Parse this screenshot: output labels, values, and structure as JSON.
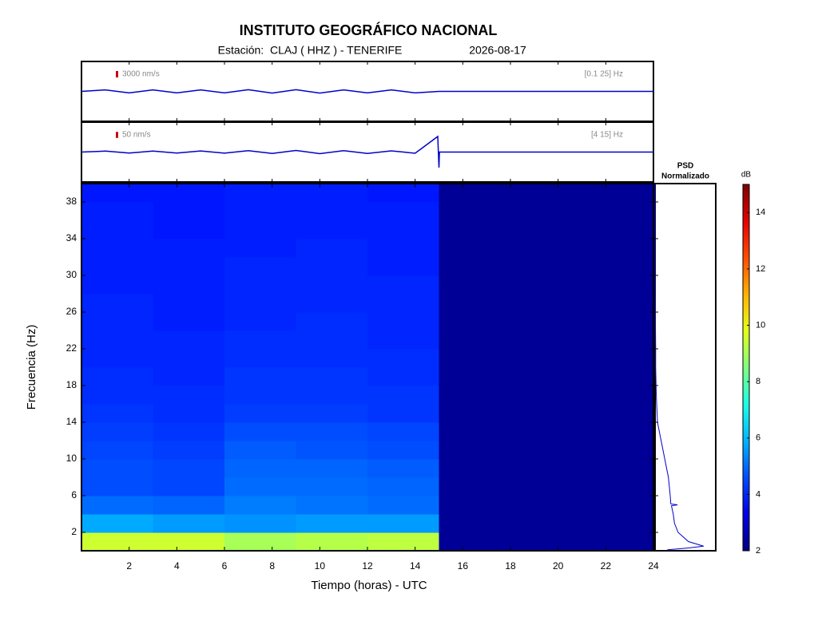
{
  "chart_data": {
    "type": "spectrogram",
    "title": "INSTITUTO GEOGRÁFICO NACIONAL",
    "subtitle": "Estación:  CLAJ ( HHZ ) - TENERIFE",
    "date": "2026-08-17",
    "xlabel": "Tiempo (horas) - UTC",
    "ylabel": "Frecuencia  (Hz)",
    "xlim": [
      0,
      24
    ],
    "xticks": [
      2,
      4,
      6,
      8,
      10,
      12,
      14,
      16,
      18,
      20,
      22,
      24
    ],
    "ylim": [
      0,
      40
    ],
    "yticks": [
      2,
      6,
      10,
      14,
      18,
      22,
      26,
      30,
      34,
      38
    ],
    "colormap": "jet",
    "clim": [
      2,
      15
    ],
    "cticks": [
      2,
      4,
      6,
      8,
      10,
      12,
      14
    ],
    "colorbar_label": "dB",
    "time_edges": [
      0,
      3,
      6,
      9,
      12,
      15,
      18,
      21,
      24
    ],
    "freq_edges": [
      0,
      2,
      4,
      6,
      8,
      10,
      12,
      14,
      16,
      18,
      20,
      22,
      24,
      26,
      28,
      30,
      32,
      34,
      36,
      38,
      40
    ],
    "values": [
      [
        9.5,
        9.5,
        9.0,
        9.2,
        9.3,
        2.3,
        2.3,
        2.3
      ],
      [
        5.8,
        5.6,
        5.5,
        5.6,
        5.6,
        2.3,
        2.3,
        2.3
      ],
      [
        5.0,
        4.9,
        5.2,
        5.1,
        5.0,
        2.3,
        2.3,
        2.3
      ],
      [
        4.6,
        4.5,
        5.0,
        5.0,
        4.9,
        2.3,
        2.3,
        2.3
      ],
      [
        4.6,
        4.5,
        4.9,
        4.9,
        4.8,
        2.3,
        2.3,
        2.3
      ],
      [
        4.5,
        4.4,
        4.8,
        4.7,
        4.6,
        2.3,
        2.3,
        2.3
      ],
      [
        4.4,
        4.3,
        4.6,
        4.6,
        4.5,
        2.3,
        2.3,
        2.3
      ],
      [
        4.3,
        4.2,
        4.4,
        4.4,
        4.3,
        2.3,
        2.3,
        2.3
      ],
      [
        4.2,
        4.2,
        4.3,
        4.3,
        4.3,
        2.3,
        2.3,
        2.3
      ],
      [
        4.2,
        4.1,
        4.3,
        4.3,
        4.2,
        2.3,
        2.3,
        2.3
      ],
      [
        4.1,
        4.1,
        4.2,
        4.2,
        4.2,
        2.3,
        2.3,
        2.3
      ],
      [
        4.1,
        4.1,
        4.2,
        4.2,
        4.1,
        2.3,
        2.3,
        2.3
      ],
      [
        4.1,
        4.0,
        4.1,
        4.2,
        4.1,
        2.3,
        2.3,
        2.3
      ],
      [
        4.1,
        4.0,
        4.1,
        4.1,
        4.1,
        2.3,
        2.3,
        2.3
      ],
      [
        4.0,
        4.0,
        4.1,
        4.1,
        4.1,
        2.3,
        2.3,
        2.3
      ],
      [
        4.0,
        4.0,
        4.1,
        4.1,
        4.0,
        2.3,
        2.3,
        2.3
      ],
      [
        4.0,
        4.0,
        4.0,
        4.1,
        4.0,
        2.3,
        2.3,
        2.3
      ],
      [
        4.0,
        3.9,
        4.0,
        4.0,
        4.0,
        2.3,
        2.3,
        2.3
      ],
      [
        4.0,
        3.9,
        4.0,
        4.0,
        4.0,
        2.3,
        2.3,
        2.3
      ],
      [
        3.9,
        3.9,
        4.0,
        4.0,
        3.9,
        2.3,
        2.3,
        2.3
      ]
    ],
    "psd": {
      "title": "PSD",
      "subtitle": "Normalizado",
      "xlim": [
        0,
        1
      ],
      "freqs": [
        40,
        30,
        22,
        20,
        17,
        14,
        12,
        10,
        8,
        6,
        5.1,
        5,
        4.9,
        4,
        3,
        2,
        1,
        0.5,
        0.3,
        0.1
      ],
      "values": [
        0,
        0,
        0.01,
        0.01,
        0.02,
        0.04,
        0.1,
        0.16,
        0.22,
        0.25,
        0.26,
        0.37,
        0.27,
        0.3,
        0.32,
        0.38,
        0.55,
        0.8,
        0.55,
        0.2
      ]
    },
    "traces": [
      {
        "scale_label": "3000 nm/s",
        "scale": 3000,
        "band_label": "[0.1 25] Hz",
        "ylim": [
          -14000,
          14000
        ],
        "x": [
          0,
          1,
          2,
          3,
          4,
          5,
          6,
          7,
          8,
          9,
          10,
          11,
          12,
          13,
          14,
          15,
          24
        ],
        "values": [
          0,
          700,
          -700,
          700,
          -700,
          700,
          -700,
          800,
          -800,
          800,
          -800,
          700,
          -700,
          700,
          -700,
          0,
          0
        ]
      },
      {
        "scale_label": "50 nm/s",
        "scale": 50,
        "band_label": "[4 15] Hz",
        "ylim": [
          -250,
          250
        ],
        "x": [
          0,
          1,
          2,
          3,
          4,
          5,
          6,
          7,
          8,
          9,
          10,
          11,
          12,
          13,
          14,
          14.95,
          15,
          15.02,
          24
        ],
        "values": [
          0,
          8,
          -8,
          8,
          -8,
          9,
          -9,
          12,
          -12,
          13,
          -13,
          12,
          -12,
          10,
          -10,
          130,
          -130,
          0,
          0
        ]
      }
    ],
    "color": "#0000cc",
    "scale_color": "#cc0000"
  }
}
